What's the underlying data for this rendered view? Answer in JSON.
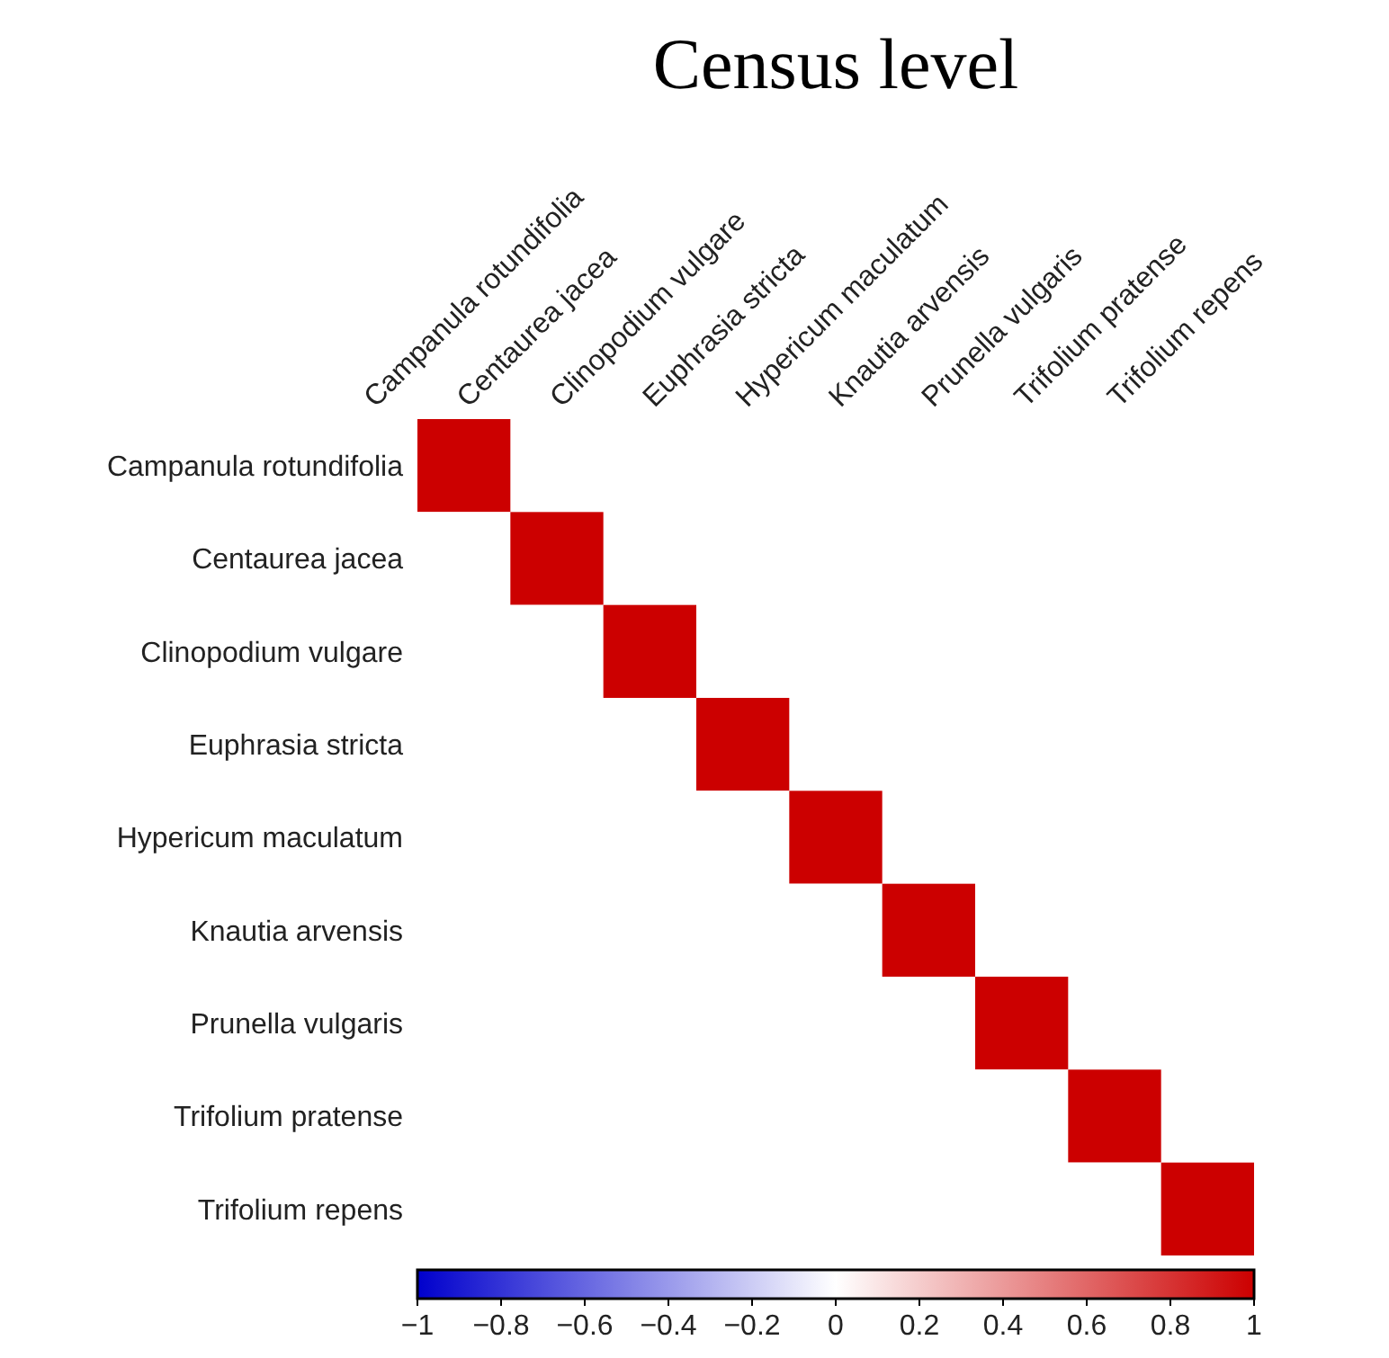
{
  "chart_data": {
    "type": "heatmap",
    "title": "Census level",
    "categories": [
      "Campanula rotundifolia",
      "Centaurea jacea",
      "Clinopodium vulgare",
      "Euphrasia stricta",
      "Hypericum maculatum",
      "Knautia arvensis",
      "Prunella vulgaris",
      "Trifolium pratense",
      "Trifolium repens"
    ],
    "y_categories": [
      "Campanula rotundifolia",
      "Centaurea jacea",
      "Clinopodium vulgare",
      "Euphrasia stricta",
      "Hypericum maculatum",
      "Knautia arvensis",
      "Prunella vulgaris",
      "Trifolium pratense",
      "Trifolium repens"
    ],
    "cells": [
      [
        1,
        null,
        null,
        null,
        null,
        null,
        null,
        null,
        null
      ],
      [
        0,
        1,
        null,
        null,
        null,
        null,
        null,
        null,
        null
      ],
      [
        0,
        0,
        1,
        null,
        null,
        null,
        null,
        null,
        null
      ],
      [
        0,
        0,
        0,
        1,
        null,
        null,
        null,
        null,
        null
      ],
      [
        0,
        0,
        0,
        0,
        1,
        null,
        null,
        null,
        null
      ],
      [
        0,
        0,
        0,
        0,
        0,
        1,
        null,
        null,
        null
      ],
      [
        0,
        0,
        0,
        0,
        0,
        0,
        1,
        null,
        null
      ],
      [
        0,
        0,
        0,
        0,
        0,
        0,
        0,
        1,
        null
      ],
      [
        0,
        0,
        0,
        0,
        0,
        0,
        0,
        0,
        1
      ]
    ],
    "clim": [
      -1,
      1
    ],
    "cticks": [
      -1,
      -0.8,
      -0.6,
      -0.4,
      -0.2,
      0,
      0.2,
      0.4,
      0.6,
      0.8,
      1
    ]
  }
}
